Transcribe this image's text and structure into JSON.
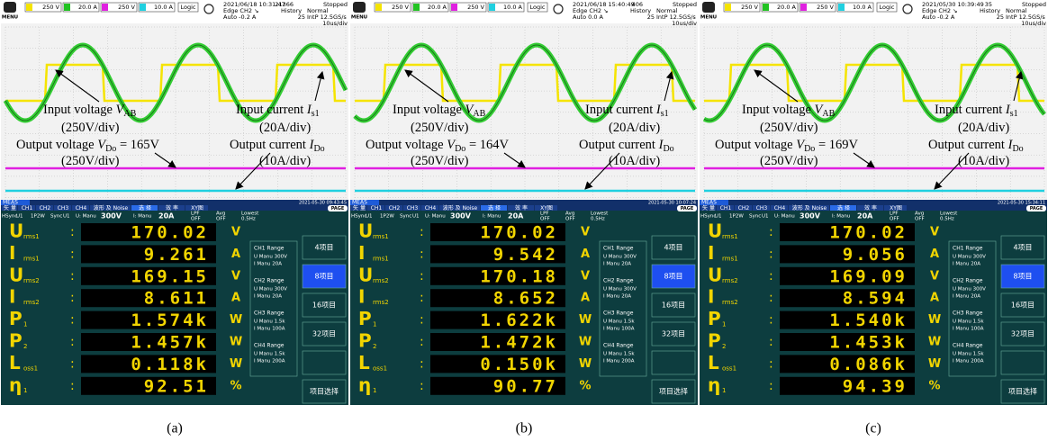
{
  "ui": {
    "menu": "MENU",
    "logic": "Logic",
    "channels": [
      "250 V",
      "20.0 A",
      "250 V",
      "10.0 A"
    ],
    "meas": "MEAS",
    "tabs": [
      "矢 量",
      "CH1",
      "CH2",
      "CH3",
      "CH4",
      "波形 及 Noise",
      "选 择",
      "效 率",
      "XY图"
    ],
    "page": "PAGE",
    "settings": [
      "HSync",
      "U1",
      "1P2W",
      "Sync",
      "U1",
      "U: Manu",
      "300V",
      "I: Manu",
      "20A",
      "LPF",
      "OFF",
      "Avg",
      "OFF",
      "Lowest",
      "0.5Hz"
    ],
    "ranges": [
      {
        "title": "CH1 Range",
        "u": "U Manu 300V",
        "i": "I Manu 20A"
      },
      {
        "title": "CH2 Range",
        "u": "U Manu 300V",
        "i": "I Manu 20A"
      },
      {
        "title": "CH3 Range",
        "u": "U Manu 1.5k",
        "i": "I Manu 100A"
      },
      {
        "title": "CH4 Range",
        "u": "U Manu 1.5k",
        "i": "I Manu 200A"
      }
    ],
    "buttons": [
      "4项目",
      "8项目",
      "16项目",
      "32项目",
      "项目选择"
    ],
    "symbols": [
      [
        "U",
        "rms1"
      ],
      [
        "I",
        "rms1"
      ],
      [
        "U",
        "rms2"
      ],
      [
        "I",
        "rms2"
      ],
      [
        "P",
        "1"
      ],
      [
        "P",
        "2"
      ],
      [
        "L",
        "oss1"
      ],
      [
        "η",
        "1"
      ]
    ],
    "units": [
      "V",
      "A",
      "V",
      "A",
      "W",
      "W",
      "W",
      "%"
    ]
  },
  "panels": [
    {
      "caption": "(a)",
      "scope": {
        "time": "2021/06/18 10:31:47",
        "count": "21366",
        "state": "Stopped",
        "trigger": "Edge CH2 ↘",
        "level": "Auto -0.2 A",
        "history": "History",
        "hcount": "25",
        "mode": "Normal",
        "rate": "IntP 12.5GS/s",
        "div": "10us/div",
        "annotations": [
          {
            "pre": "Input voltage ",
            "var": "V",
            "sub": "AB",
            "post": ""
          },
          {
            "pre": "(250V/div)"
          },
          {
            "pre": "Input current ",
            "var": "I",
            "sub": "s1",
            "post": ""
          },
          {
            "pre": "(20A/div)"
          },
          {
            "pre": "Output voltage ",
            "var": "V",
            "sub": "Do",
            "post": " = 165V"
          },
          {
            "pre": "(250V/div)"
          },
          {
            "pre": "Output current ",
            "var": "I",
            "sub": "Do",
            "post": ""
          },
          {
            "pre": "(10A/div)"
          }
        ]
      },
      "meter": {
        "time": "2021-05-30 09:43:45",
        "values": [
          "170.02",
          "9.261",
          "169.15",
          "8.611",
          "1.574k",
          "1.457k",
          "0.118k",
          "92.51"
        ]
      }
    },
    {
      "caption": "(b)",
      "scope": {
        "time": "2021/06/18 15:40:49",
        "count": "406",
        "state": "Stopped",
        "trigger": "Edge CH2 ↘",
        "level": "Auto 0.0 A",
        "history": "History",
        "hcount": "25",
        "mode": "Normal",
        "rate": "IntP 12.5GS/s",
        "div": "10us/div",
        "annotations": [
          {
            "pre": "Input voltage ",
            "var": "V",
            "sub": "AB",
            "post": ""
          },
          {
            "pre": "(250V/div)"
          },
          {
            "pre": "Input current ",
            "var": "I",
            "sub": "s1",
            "post": ""
          },
          {
            "pre": "(20A/div)"
          },
          {
            "pre": "Output voltage ",
            "var": "V",
            "sub": "Do",
            "post": " = 164V"
          },
          {
            "pre": "(250V/div)"
          },
          {
            "pre": "Output current ",
            "var": "I",
            "sub": "Do",
            "post": ""
          },
          {
            "pre": "(10A/div)"
          }
        ]
      },
      "meter": {
        "time": "2021-05-30 10:07:24",
        "values": [
          "170.02",
          "9.542",
          "170.18",
          "8.652",
          "1.622k",
          "1.472k",
          "0.150k",
          "90.77"
        ]
      }
    },
    {
      "caption": "(c)",
      "scope": {
        "time": "2021/05/30 10:39:49",
        "count": "35",
        "state": "Stopped",
        "trigger": "Edge CH2 ↘",
        "level": "Auto -0.2 A",
        "history": "History",
        "hcount": "25",
        "mode": "Normal",
        "rate": "IntP 12.5GS/s",
        "div": "10us/div",
        "annotations": [
          {
            "pre": "Input voltage ",
            "var": "V",
            "sub": "AB",
            "post": ""
          },
          {
            "pre": "(250V/div)"
          },
          {
            "pre": "Input current ",
            "var": "I",
            "sub": "s1",
            "post": ""
          },
          {
            "pre": "(20A/div)"
          },
          {
            "pre": "Output voltage ",
            "var": "V",
            "sub": "Do",
            "post": " = 169V"
          },
          {
            "pre": "(250V/div)"
          },
          {
            "pre": "Output current ",
            "var": "I",
            "sub": "Do",
            "post": ""
          },
          {
            "pre": "(10A/div)"
          }
        ]
      },
      "meter": {
        "time": "2021-05-30 15:34:11",
        "values": [
          "170.02",
          "9.056",
          "169.09",
          "8.594",
          "1.540k",
          "1.453k",
          "0.086k",
          "94.39"
        ]
      }
    }
  ]
}
